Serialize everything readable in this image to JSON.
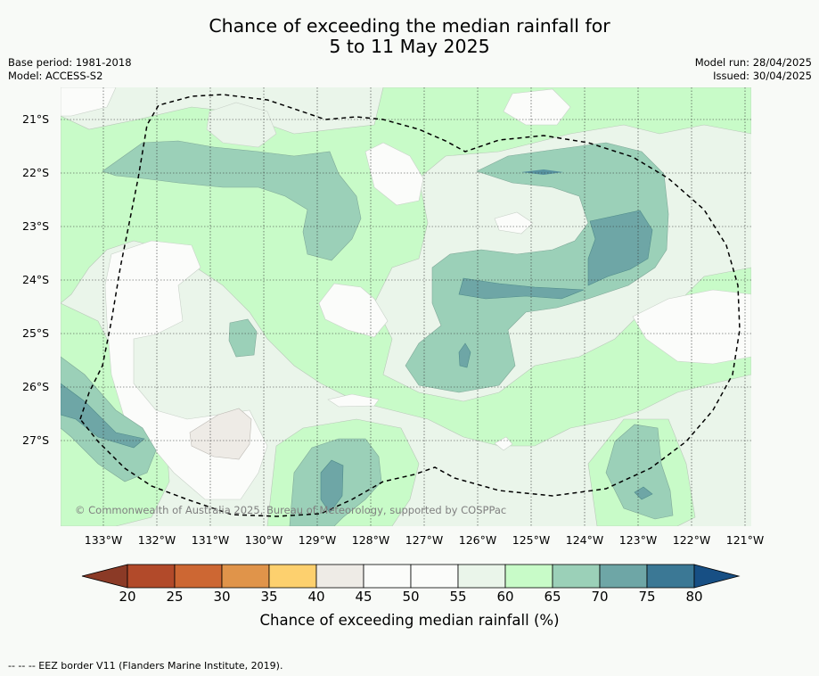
{
  "title": {
    "line1": "Chance of exceeding the median rainfall for",
    "line2": "5 to 11 May 2025"
  },
  "info_left": {
    "base_period": "Base period: 1981-2018",
    "model": "Model: ACCESS-S2"
  },
  "info_right": {
    "model_run": "Model run: 28/04/2025",
    "issued": "Issued: 30/04/2025"
  },
  "copyright": "© Commonwealth of Australia 2025, Bureau of Meteorology, supported by COSPPac",
  "latitude_labels": [
    "21°S",
    "22°S",
    "23°S",
    "24°S",
    "25°S",
    "26°S",
    "27°S"
  ],
  "longitude_labels": [
    "133°W",
    "132°W",
    "131°W",
    "130°W",
    "129°W",
    "128°W",
    "127°W",
    "126°W",
    "125°W",
    "124°W",
    "123°W",
    "122°W",
    "121°W"
  ],
  "colorbar": {
    "ticks": [
      "20",
      "25",
      "30",
      "35",
      "40",
      "45",
      "50",
      "55",
      "60",
      "65",
      "70",
      "75",
      "80"
    ],
    "colors": [
      "#8b3a26",
      "#b24a2a",
      "#cd6733",
      "#e0944a",
      "#fdd06e",
      "#eeebe6",
      "#fbfcfa",
      "#fbfcfa",
      "#eaf5ea",
      "#c8fbc8",
      "#9bd0b8",
      "#6ea6a6",
      "#3b7895",
      "#174f84"
    ],
    "title": "Chance of exceeding median rainfall (%)"
  },
  "footnote": "--  --  -- EEZ border V11 (Flanders Marine Institute, 2019).",
  "map_colors": {
    "very_light": "#fbfcfa",
    "light_green": "#eaf5ea",
    "green": "#c8fbc8",
    "teal_light": "#9bd0b8",
    "teal": "#6ea6a6",
    "steel_blue": "#3b7895",
    "grey": "#eeebe6"
  }
}
